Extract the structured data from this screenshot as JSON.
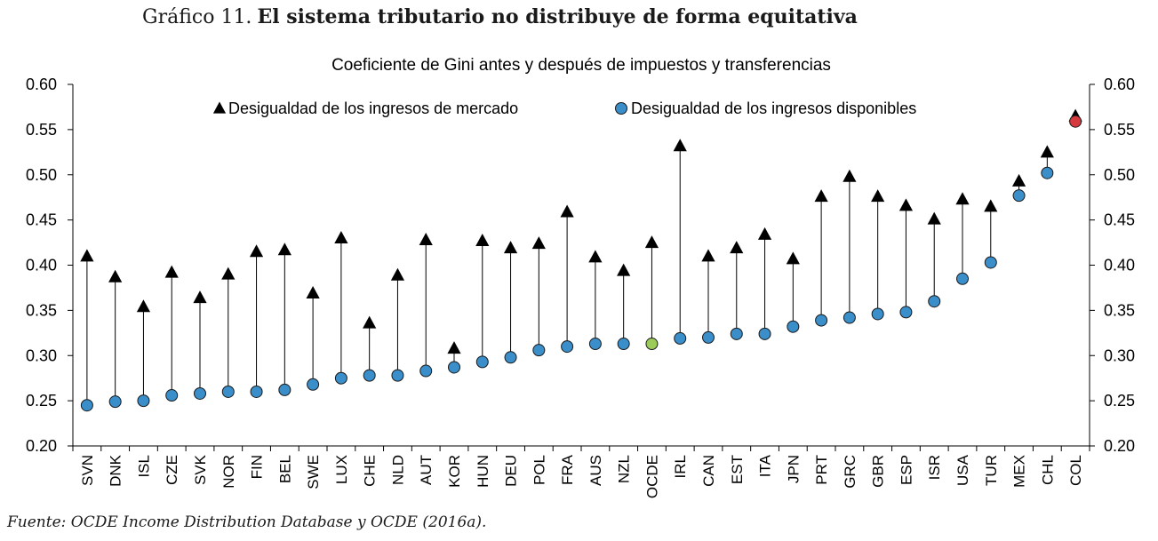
{
  "figure": {
    "label": "Gráfico 11.",
    "title": "El sistema tributario no distribuye de forma equitativa",
    "source": "Fuente: OCDE Income Distribution Database y OCDE (2016a)."
  },
  "chart_data": {
    "type": "scatter",
    "title": "Coeficiente de Gini antes y después de impuestos y transferencias",
    "xlabel": "",
    "ylabel": "",
    "ylim": [
      0.2,
      0.6
    ],
    "yticks": [
      "0.20",
      "0.25",
      "0.30",
      "0.35",
      "0.40",
      "0.45",
      "0.50",
      "0.55",
      "0.60"
    ],
    "grid": false,
    "legend_position": "top",
    "categories": [
      "SVN",
      "DNK",
      "ISL",
      "CZE",
      "SVK",
      "NOR",
      "FIN",
      "BEL",
      "SWE",
      "LUX",
      "CHE",
      "NLD",
      "AUT",
      "KOR",
      "HUN",
      "DEU",
      "POL",
      "FRA",
      "AUS",
      "NZL",
      "OCDE",
      "IRL",
      "CAN",
      "EST",
      "ITA",
      "JPN",
      "PRT",
      "GRC",
      "GBR",
      "ESP",
      "ISR",
      "USA",
      "TUR",
      "MEX",
      "CHL",
      "COL"
    ],
    "series": [
      {
        "name": "Desigualdad de los ingresos de mercado",
        "marker": "triangle",
        "color": "#000000",
        "values": [
          0.41,
          0.387,
          0.354,
          0.392,
          0.364,
          0.39,
          0.415,
          0.417,
          0.369,
          0.43,
          0.336,
          0.389,
          0.428,
          0.308,
          0.427,
          0.419,
          0.424,
          0.459,
          0.409,
          0.394,
          0.425,
          0.532,
          0.41,
          0.419,
          0.434,
          0.407,
          0.476,
          0.498,
          0.476,
          0.466,
          0.451,
          0.473,
          0.465,
          0.493,
          0.525,
          0.565
        ]
      },
      {
        "name": "Desigualdad de los ingresos disponibles",
        "marker": "circle",
        "color": "#3a8ec9",
        "highlight": {
          "OCDE": "#9ccb59",
          "COL": "#d6393e"
        },
        "values": [
          0.245,
          0.249,
          0.25,
          0.256,
          0.258,
          0.26,
          0.26,
          0.262,
          0.268,
          0.275,
          0.278,
          0.278,
          0.283,
          0.287,
          0.293,
          0.298,
          0.306,
          0.31,
          0.313,
          0.313,
          0.313,
          0.319,
          0.32,
          0.324,
          0.324,
          0.332,
          0.339,
          0.342,
          0.346,
          0.348,
          0.36,
          0.385,
          0.403,
          0.477,
          0.502,
          0.559
        ]
      }
    ]
  }
}
